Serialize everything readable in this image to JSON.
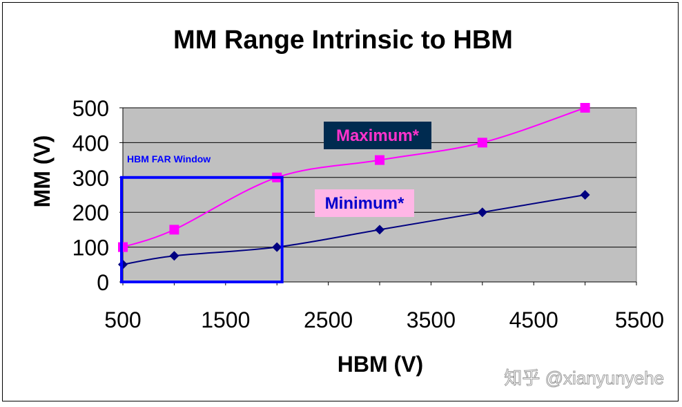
{
  "chart_data": {
    "type": "line",
    "title": "MM Range Intrinsic to HBM",
    "xlabel": "HBM (V)",
    "ylabel": "MM  (V)",
    "xlim": [
      500,
      5500
    ],
    "ylim": [
      0,
      500
    ],
    "x_ticks": [
      500,
      1500,
      2500,
      3500,
      4500,
      5500
    ],
    "y_ticks": [
      0,
      100,
      200,
      300,
      400,
      500
    ],
    "grid": "horizontal",
    "plot_background": "#c0c0c0",
    "series": [
      {
        "name": "Maximum*",
        "color": "#ff00ff",
        "marker": "square",
        "points": [
          [
            500,
            100
          ],
          [
            1000,
            150
          ],
          [
            2000,
            300
          ],
          [
            3000,
            350
          ],
          [
            4000,
            400
          ],
          [
            5000,
            500
          ]
        ]
      },
      {
        "name": "Minimum*",
        "color": "#000080",
        "marker": "diamond",
        "points": [
          [
            500,
            50
          ],
          [
            1000,
            75
          ],
          [
            2000,
            100
          ],
          [
            3000,
            150
          ],
          [
            4000,
            200
          ],
          [
            5000,
            250
          ]
        ]
      }
    ],
    "annotations": {
      "window_label": "HBM FAR Window",
      "window_color": "#0000ff",
      "window_range": {
        "x": [
          500,
          2050
        ],
        "y": [
          0,
          300
        ]
      },
      "maximum_label": "Maximum*",
      "maximum_label_bg": "#002b50",
      "maximum_label_color": "#ff33cc",
      "minimum_label": "Minimum*",
      "minimum_label_bg": "#ffb6e6",
      "minimum_label_color": "#0000cc"
    },
    "watermark": "知乎 @xianyunyehe"
  }
}
